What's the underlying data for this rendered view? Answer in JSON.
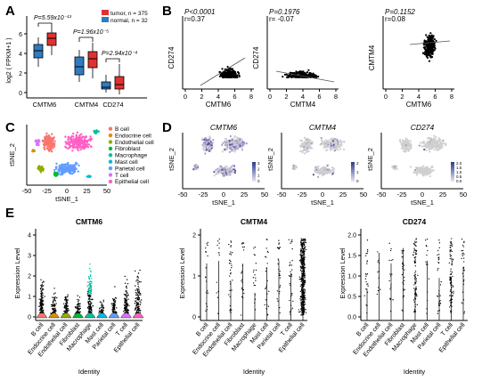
{
  "panels": {
    "A": {
      "letter": "A",
      "ylabel": "log2 ( FPKM+1 )",
      "yticks": [
        "0",
        "2",
        "4",
        "6"
      ],
      "categories": [
        "CMTM6",
        "CMTM4",
        "CD274"
      ],
      "pvalues": [
        "P=5.59x10⁻¹³",
        "P=1.96x10⁻⁵",
        "P=2.94x10⁻⁴"
      ],
      "legend": [
        "tumor, n = 375",
        "normal, n = 32"
      ],
      "colors": {
        "tumor": "#e03131",
        "normal": "#2f7bbf"
      }
    },
    "B": {
      "letter": "B",
      "plots": [
        {
          "p": "P<0.0001",
          "r": "r=0.37",
          "xlabel": "CMTM6",
          "ylabel": "CD274",
          "xticks": [
            "0",
            "2",
            "4",
            "6",
            "8"
          ]
        },
        {
          "p": "P=0.1976",
          "r": "r= -0.07",
          "xlabel": "CMTM4",
          "ylabel": "CD274",
          "xticks": [
            "0",
            "2",
            "4",
            "6",
            "8"
          ]
        },
        {
          "p": "P=0.1152",
          "r": "r=0.08",
          "xlabel": "CMTM6",
          "ylabel": "CMTM4",
          "xticks": [
            "0",
            "2",
            "4",
            "6",
            "8"
          ]
        }
      ]
    },
    "C": {
      "letter": "C",
      "xlabel": "tSNE_1",
      "ylabel": "tSNE_2",
      "xticks": [
        "-50",
        "-25",
        "0",
        "25",
        "50"
      ],
      "legend": [
        {
          "label": "B cell",
          "color": "#f8766d"
        },
        {
          "label": "Endocrine cell",
          "color": "#d39200"
        },
        {
          "label": "Endothelial cell",
          "color": "#93aa00"
        },
        {
          "label": "Fibroblast",
          "color": "#00ba38"
        },
        {
          "label": "Macrophage",
          "color": "#00c19f"
        },
        {
          "label": "Mast cell",
          "color": "#00b9e3"
        },
        {
          "label": "Parietal cell",
          "color": "#619cff"
        },
        {
          "label": "T cell",
          "color": "#db72fb"
        },
        {
          "label": "Epithelial cell",
          "color": "#ff61c3"
        }
      ]
    },
    "D": {
      "letter": "D",
      "plots": [
        {
          "title": "CMTM6",
          "scale": [
            "3",
            "2",
            "1",
            "0"
          ]
        },
        {
          "title": "CMTM4",
          "scale": [
            "2",
            "1",
            "0"
          ]
        },
        {
          "title": "CD274",
          "scale": [
            "2.0",
            "1.5",
            "1.0",
            "0.5",
            "0.0"
          ]
        }
      ],
      "xlabel": "tSNE_1",
      "ylabel": "tSNE_2",
      "xticks": [
        "-50",
        "-25",
        "0",
        "25",
        "50"
      ]
    },
    "E": {
      "letter": "E",
      "ylabel": "Expression Level",
      "xlabel": "Identity",
      "categories": [
        "B cell",
        "Endocrine cell",
        "Endothelial cell",
        "Fibroblast",
        "Macrophage",
        "Mast cell",
        "Parietal cell",
        "T cell",
        "Epithelial cell"
      ],
      "plots": [
        {
          "title": "CMTM6",
          "yticks": [
            "0",
            "1",
            "2",
            "3",
            "4"
          ]
        },
        {
          "title": "CMTM4",
          "yticks": [
            "0",
            "1",
            "2"
          ]
        },
        {
          "title": "CD274",
          "yticks": [
            "0.0",
            "0.5",
            "1.0",
            "1.5",
            "2.0"
          ]
        }
      ]
    }
  }
}
